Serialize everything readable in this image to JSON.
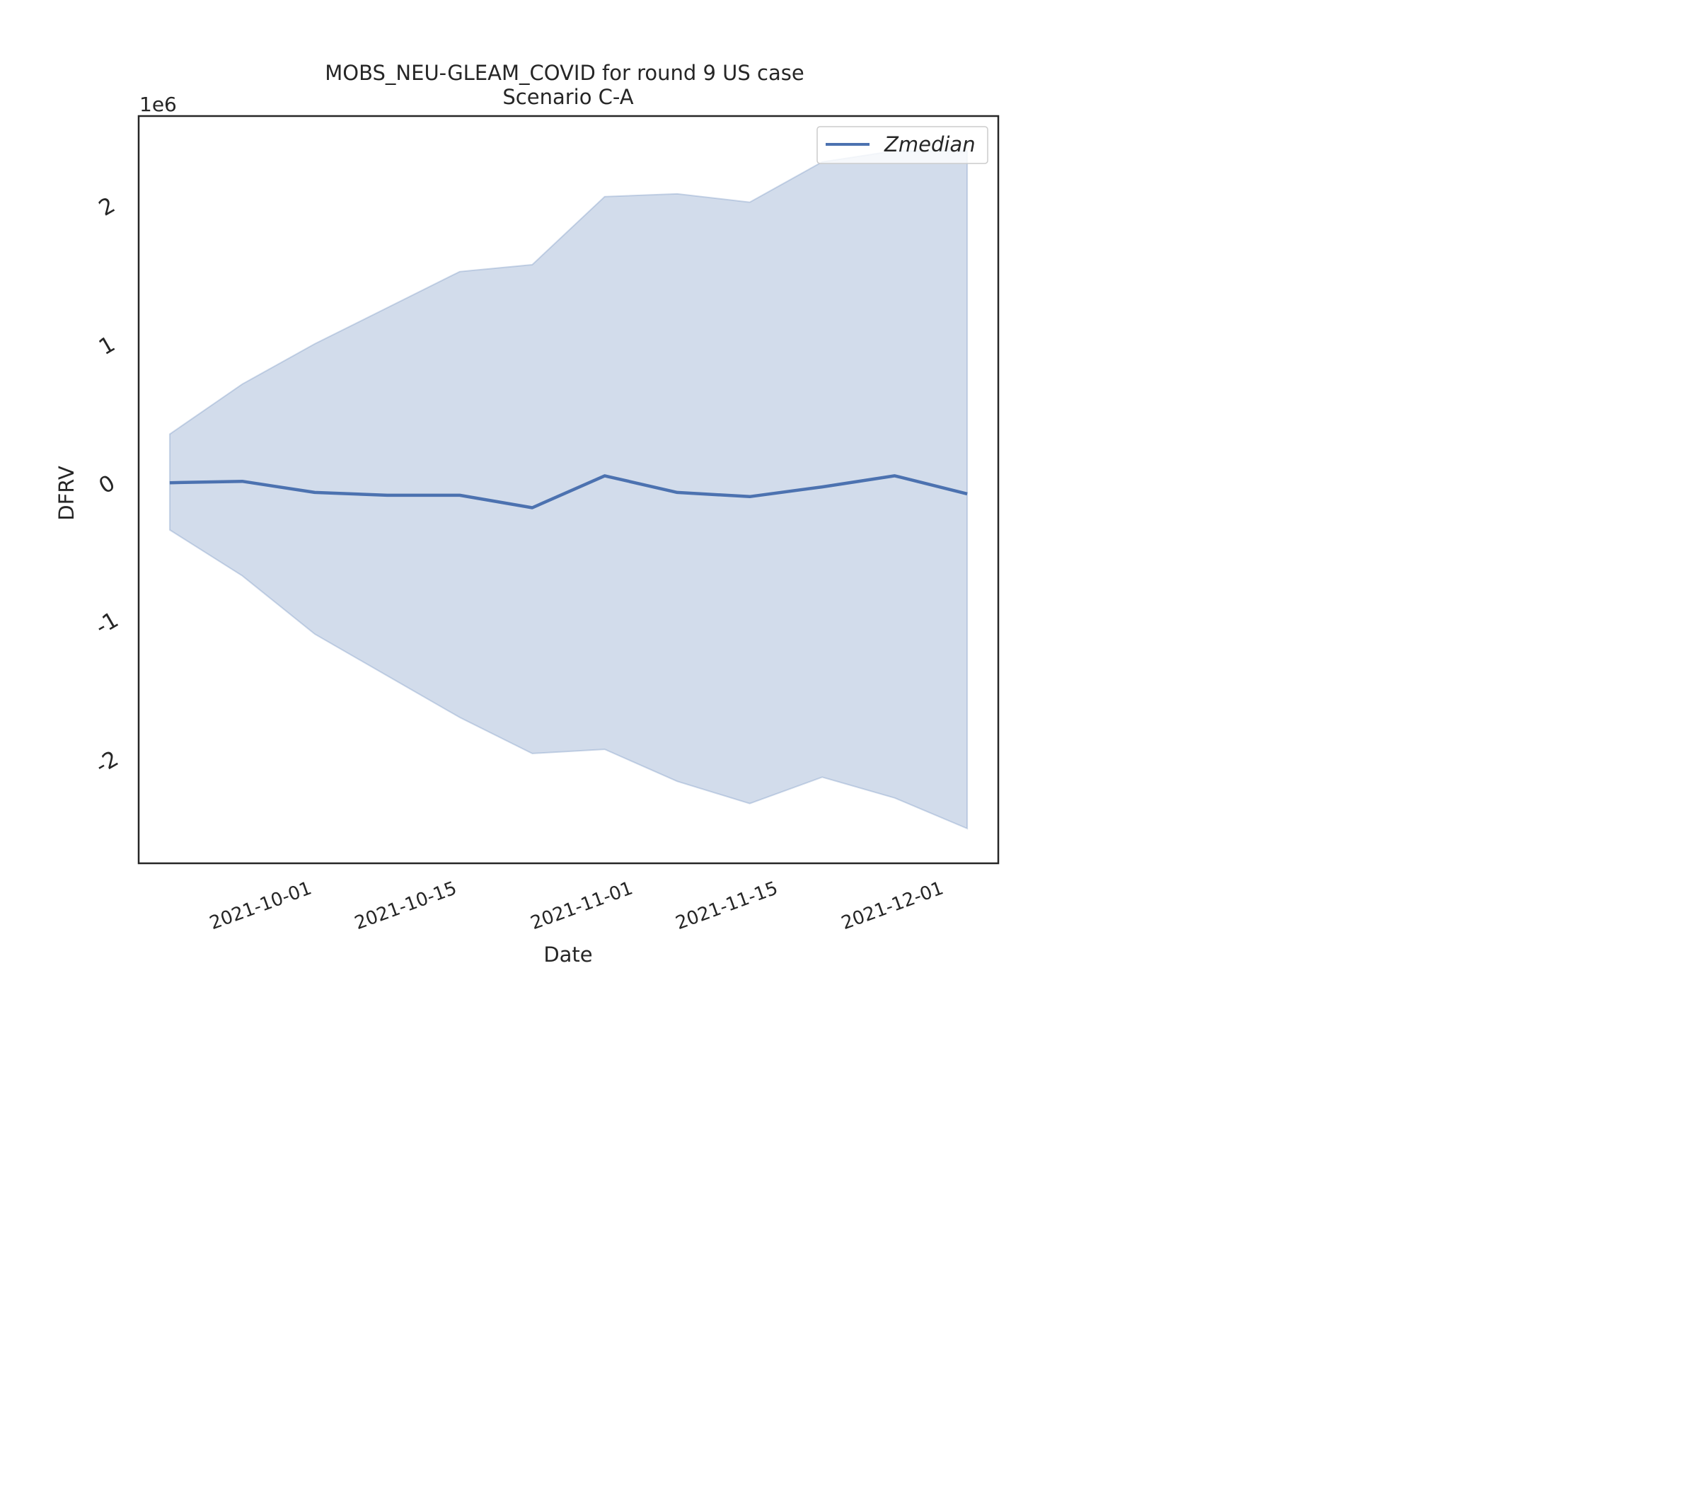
{
  "chart_data": {
    "type": "line",
    "title": "MOBS_NEU-GLEAM_COVID for round 9 US case",
    "subtitle": "Scenario C-A",
    "xlabel": "Date",
    "ylabel": "DFRV",
    "y_scale_label": "1e6",
    "x": [
      "2021-09-18",
      "2021-09-25",
      "2021-10-02",
      "2021-10-09",
      "2021-10-16",
      "2021-10-23",
      "2021-10-30",
      "2021-11-06",
      "2021-11-13",
      "2021-11-20",
      "2021-11-27",
      "2021-12-04"
    ],
    "series": [
      {
        "name": "Zmedian",
        "values": [
          0.0,
          0.01,
          -0.07,
          -0.09,
          -0.09,
          -0.18,
          0.05,
          -0.07,
          -0.1,
          -0.03,
          0.05,
          -0.08
        ],
        "color": "#4c72b0"
      }
    ],
    "band": {
      "upper": [
        0.35,
        0.71,
        1.0,
        1.26,
        1.52,
        1.57,
        2.06,
        2.08,
        2.02,
        2.31,
        2.39,
        2.39
      ],
      "lower": [
        -0.34,
        -0.67,
        -1.09,
        -1.39,
        -1.69,
        -1.95,
        -1.92,
        -2.15,
        -2.31,
        -2.12,
        -2.27,
        -2.49
      ],
      "color": "#4c72b0",
      "opacity": 0.25
    },
    "xticks": [
      "2021-10-01",
      "2021-10-15",
      "2021-11-01",
      "2021-11-15",
      "2021-12-01"
    ],
    "yticks": [
      -2,
      -1,
      0,
      1,
      2
    ],
    "ytick_labels": [
      "-2",
      "-1",
      "0",
      "1",
      "2"
    ],
    "xlim": [
      "2021-09-15",
      "2021-12-07"
    ],
    "ylim": [
      -2.74,
      2.64
    ],
    "grid": false,
    "legend_position": "upper right"
  }
}
